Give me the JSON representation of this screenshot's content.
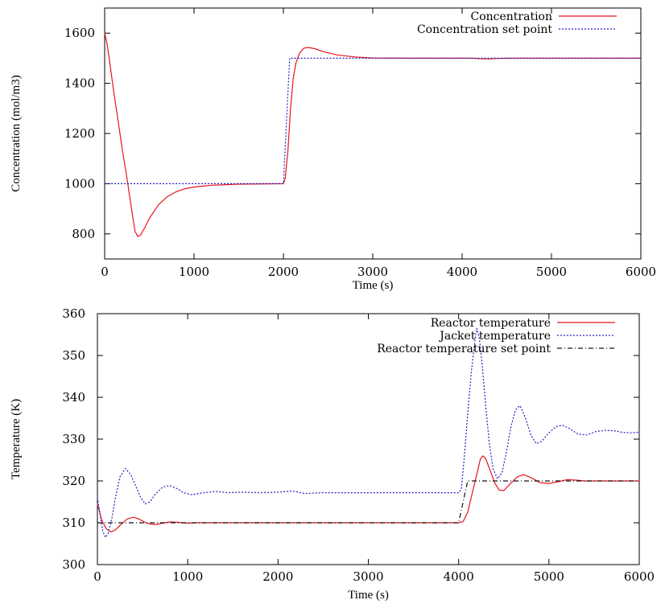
{
  "chart_data": [
    {
      "type": "line",
      "xlabel": "Time (s)",
      "ylabel": "Concentration (mol/m3)",
      "xlim": [
        0,
        6000
      ],
      "ylim": [
        700,
        1700
      ],
      "xticks": [
        0,
        1000,
        2000,
        3000,
        4000,
        5000,
        6000
      ],
      "yticks": [
        800,
        1000,
        1200,
        1400,
        1600
      ],
      "legend_position": "top-right",
      "grid": false,
      "series": [
        {
          "name": "Concentration",
          "color": "#e8141e",
          "dash": "solid",
          "points": [
            [
              0,
              1600
            ],
            [
              25,
              1560
            ],
            [
              50,
              1500
            ],
            [
              100,
              1370
            ],
            [
              150,
              1250
            ],
            [
              200,
              1130
            ],
            [
              250,
              1020
            ],
            [
              300,
              900
            ],
            [
              340,
              810
            ],
            [
              370,
              790
            ],
            [
              400,
              795
            ],
            [
              450,
              825
            ],
            [
              500,
              862
            ],
            [
              600,
              915
            ],
            [
              700,
              948
            ],
            [
              800,
              968
            ],
            [
              900,
              980
            ],
            [
              1000,
              987
            ],
            [
              1200,
              994
            ],
            [
              1500,
              998
            ],
            [
              2000,
              1000
            ],
            [
              2020,
              1020
            ],
            [
              2050,
              1130
            ],
            [
              2080,
              1300
            ],
            [
              2110,
              1420
            ],
            [
              2140,
              1480
            ],
            [
              2180,
              1520
            ],
            [
              2230,
              1540
            ],
            [
              2280,
              1543
            ],
            [
              2350,
              1538
            ],
            [
              2450,
              1526
            ],
            [
              2600,
              1513
            ],
            [
              2800,
              1505
            ],
            [
              3000,
              1501
            ],
            [
              3500,
              1500
            ],
            [
              4100,
              1500
            ],
            [
              4200,
              1498
            ],
            [
              4300,
              1497
            ],
            [
              4400,
              1499
            ],
            [
              4500,
              1500
            ],
            [
              6000,
              1500
            ]
          ]
        },
        {
          "name": "Concentration set point",
          "color": "#2020c8",
          "dash": "dotted",
          "points": [
            [
              0,
              1000
            ],
            [
              2000,
              1000
            ],
            [
              2070,
              1500
            ],
            [
              6000,
              1500
            ]
          ]
        }
      ]
    },
    {
      "type": "line",
      "xlabel": "Time (s)",
      "ylabel": "Temperature (K)",
      "xlim": [
        0,
        6000
      ],
      "ylim": [
        300,
        360
      ],
      "xticks": [
        0,
        1000,
        2000,
        3000,
        4000,
        5000,
        6000
      ],
      "yticks": [
        300,
        310,
        320,
        330,
        340,
        350,
        360
      ],
      "legend_position": "top-right",
      "grid": false,
      "series": [
        {
          "name": "Reactor temperature",
          "color": "#e8141e",
          "dash": "solid",
          "points": [
            [
              0,
              314.5
            ],
            [
              50,
              310.5
            ],
            [
              100,
              308.5
            ],
            [
              150,
              307.8
            ],
            [
              200,
              308.3
            ],
            [
              260,
              309.6
            ],
            [
              330,
              310.9
            ],
            [
              400,
              311.3
            ],
            [
              460,
              310.9
            ],
            [
              520,
              310.2
            ],
            [
              580,
              309.7
            ],
            [
              650,
              309.6
            ],
            [
              720,
              309.9
            ],
            [
              800,
              310.2
            ],
            [
              900,
              310.1
            ],
            [
              1000,
              309.9
            ],
            [
              1100,
              310.0
            ],
            [
              1500,
              310.0
            ],
            [
              2000,
              310.0
            ],
            [
              3000,
              310.0
            ],
            [
              4000,
              310.0
            ],
            [
              4050,
              310.3
            ],
            [
              4100,
              312.5
            ],
            [
              4150,
              317.0
            ],
            [
              4200,
              321.5
            ],
            [
              4240,
              325.2
            ],
            [
              4270,
              326.0
            ],
            [
              4300,
              325.3
            ],
            [
              4350,
              322.5
            ],
            [
              4400,
              319.5
            ],
            [
              4450,
              317.8
            ],
            [
              4500,
              317.7
            ],
            [
              4580,
              319.5
            ],
            [
              4650,
              321.0
            ],
            [
              4720,
              321.5
            ],
            [
              4800,
              320.8
            ],
            [
              4900,
              319.6
            ],
            [
              5000,
              319.4
            ],
            [
              5100,
              319.8
            ],
            [
              5200,
              320.3
            ],
            [
              5300,
              320.2
            ],
            [
              5400,
              320.0
            ],
            [
              5600,
              320.0
            ],
            [
              6000,
              320.0
            ]
          ]
        },
        {
          "name": "Jacket temperature",
          "color": "#2020c8",
          "dash": "dotted",
          "points": [
            [
              0,
              316
            ],
            [
              30,
              312
            ],
            [
              60,
              308
            ],
            [
              90,
              306.5
            ],
            [
              120,
              307.5
            ],
            [
              160,
              311
            ],
            [
              200,
              316
            ],
            [
              250,
              321
            ],
            [
              310,
              323
            ],
            [
              370,
              321.5
            ],
            [
              430,
              318.5
            ],
            [
              480,
              316
            ],
            [
              530,
              314.5
            ],
            [
              580,
              315
            ],
            [
              640,
              316.8
            ],
            [
              720,
              318.5
            ],
            [
              800,
              318.9
            ],
            [
              880,
              318.2
            ],
            [
              950,
              317.2
            ],
            [
              1050,
              316.7
            ],
            [
              1150,
              317.1
            ],
            [
              1300,
              317.5
            ],
            [
              1450,
              317.2
            ],
            [
              1600,
              317.3
            ],
            [
              1800,
              317.2
            ],
            [
              2000,
              317.3
            ],
            [
              2150,
              317.6
            ],
            [
              2300,
              317.0
            ],
            [
              2500,
              317.2
            ],
            [
              2800,
              317.2
            ],
            [
              3200,
              317.2
            ],
            [
              3600,
              317.2
            ],
            [
              4000,
              317.2
            ],
            [
              4030,
              318
            ],
            [
              4060,
              325
            ],
            [
              4100,
              336
            ],
            [
              4140,
              346
            ],
            [
              4180,
              353.5
            ],
            [
              4200,
              356.5
            ],
            [
              4230,
              354
            ],
            [
              4260,
              348
            ],
            [
              4300,
              338
            ],
            [
              4340,
              329
            ],
            [
              4380,
              323
            ],
            [
              4430,
              320.5
            ],
            [
              4480,
              322
            ],
            [
              4530,
              327
            ],
            [
              4580,
              333
            ],
            [
              4630,
              337
            ],
            [
              4680,
              338
            ],
            [
              4740,
              335
            ],
            [
              4800,
              331
            ],
            [
              4860,
              328.9
            ],
            [
              4920,
              329.5
            ],
            [
              5000,
              331.5
            ],
            [
              5080,
              333.0
            ],
            [
              5150,
              333.3
            ],
            [
              5230,
              332.5
            ],
            [
              5320,
              331.2
            ],
            [
              5420,
              331.0
            ],
            [
              5520,
              331.8
            ],
            [
              5620,
              332.1
            ],
            [
              5720,
              332.0
            ],
            [
              5820,
              331.6
            ],
            [
              5920,
              331.5
            ],
            [
              6000,
              331.7
            ]
          ]
        },
        {
          "name": "Reactor temperature set point",
          "color": "#111111",
          "dash": "dashdot",
          "points": [
            [
              0,
              310
            ],
            [
              4000,
              310
            ],
            [
              4100,
              320
            ],
            [
              6000,
              320
            ]
          ]
        }
      ]
    }
  ]
}
